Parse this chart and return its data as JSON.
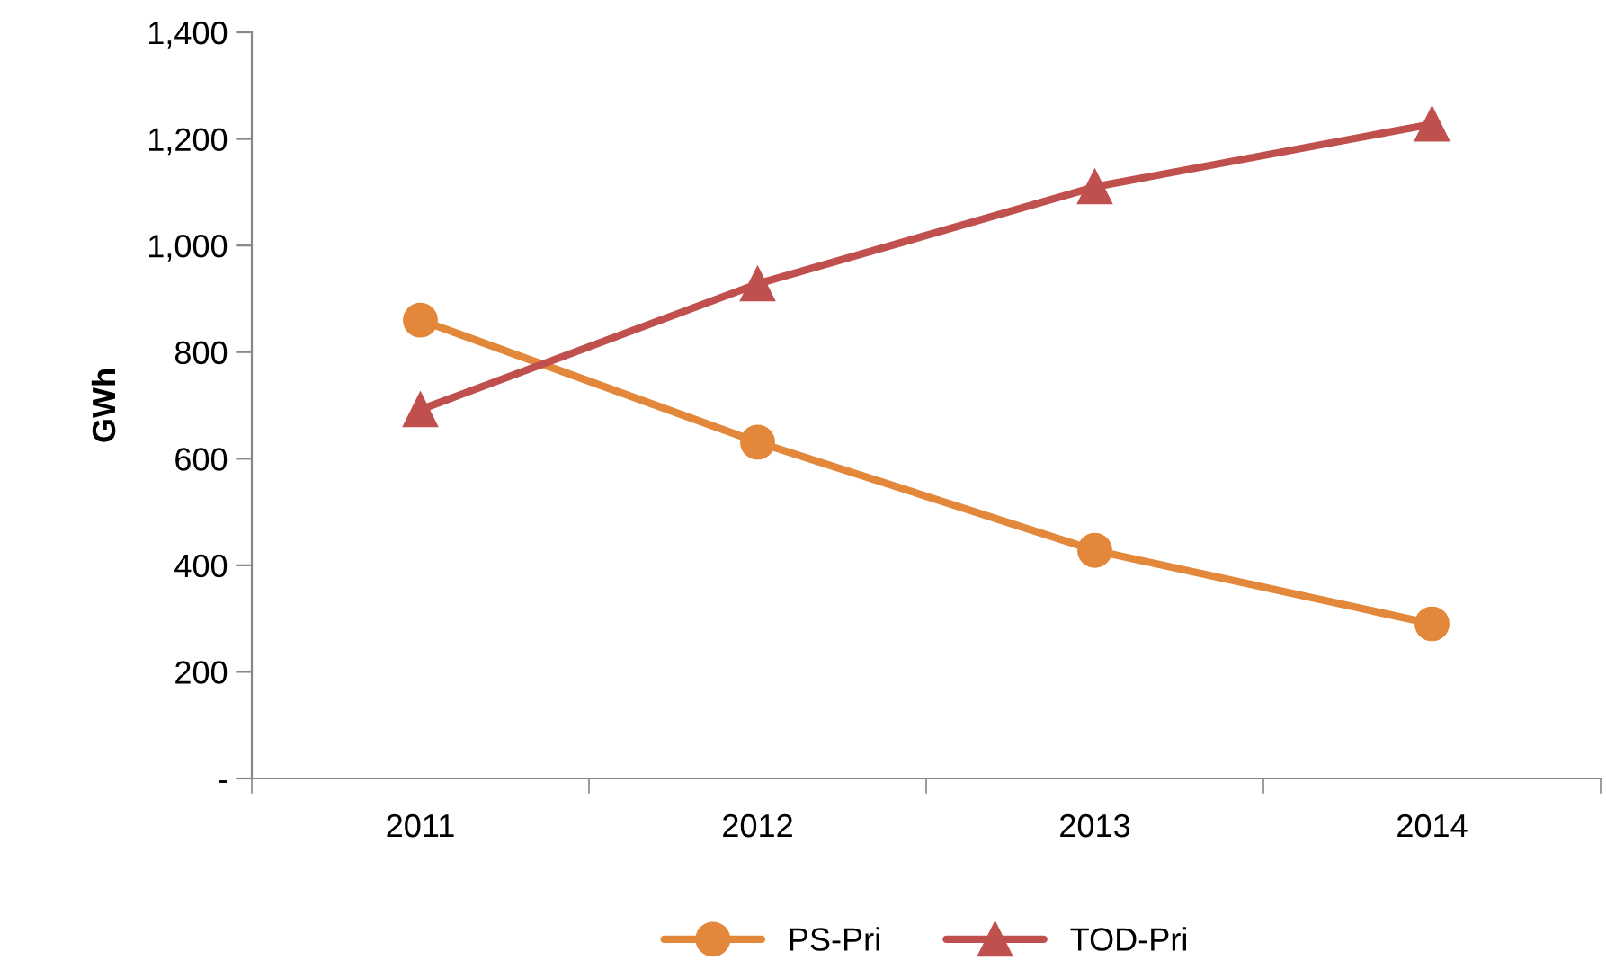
{
  "chart_data": {
    "type": "line",
    "ylabel": "GWh",
    "categories": [
      "2011",
      "2012",
      "2013",
      "2014"
    ],
    "series": [
      {
        "name": "PS-Pri",
        "color": "#e3883a",
        "marker": "circle",
        "values": [
          860,
          631,
          428,
          290
        ]
      },
      {
        "name": "TOD-Pri",
        "color": "#c0504d",
        "marker": "triangle",
        "values": [
          692,
          928,
          1110,
          1228
        ]
      }
    ],
    "ylim": [
      0,
      1400
    ],
    "yticks": [
      {
        "value": 0,
        "label": "-"
      },
      {
        "value": 200,
        "label": "200"
      },
      {
        "value": 400,
        "label": "400"
      },
      {
        "value": 600,
        "label": "600"
      },
      {
        "value": 800,
        "label": "800"
      },
      {
        "value": 1000,
        "label": "1,000"
      },
      {
        "value": 1200,
        "label": "1,200"
      },
      {
        "value": 1400,
        "label": "1,400"
      }
    ],
    "grid": false,
    "legend": "bottom"
  }
}
